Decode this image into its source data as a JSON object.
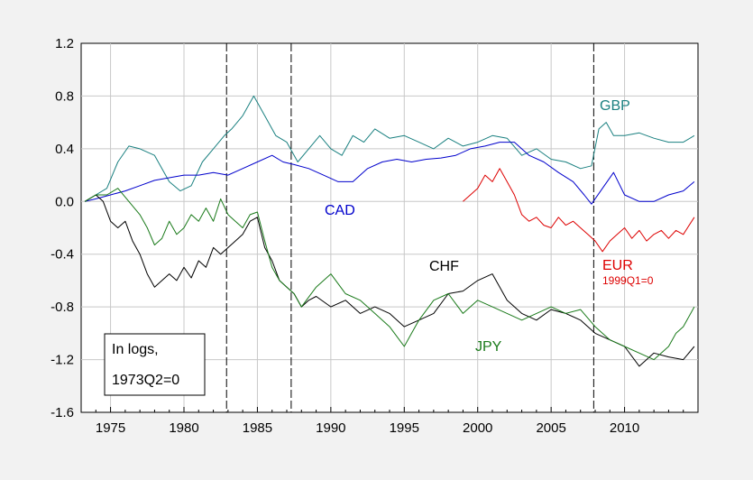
{
  "chart_data": {
    "type": "line",
    "title": "",
    "xlabel": "",
    "ylabel": "",
    "xlim": [
      1973,
      2015
    ],
    "ylim": [
      -1.6,
      1.2
    ],
    "x_ticks": [
      1975,
      1980,
      1985,
      1990,
      1995,
      2000,
      2005,
      2010
    ],
    "y_ticks": [
      1.2,
      0.8,
      0.4,
      0.0,
      -0.4,
      -0.8,
      -1.2,
      -1.6
    ],
    "y_tick_labels": [
      "1.2",
      "0.8",
      "0.4",
      "0.0",
      "-0.4",
      "-0.8",
      "-1.2",
      "-1.6"
    ],
    "x_tick_labels": [
      "1975",
      "1980",
      "1985",
      "1990",
      "1995",
      "2000",
      "2005",
      "2010"
    ],
    "grid": true,
    "vertical_lines": [
      1982.9,
      1987.3,
      2007.9
    ],
    "note": {
      "line1": "In logs,",
      "line2": "1973Q2=0"
    },
    "series": [
      {
        "name": "GBP",
        "color": "#1a8080",
        "x": [
          1973.25,
          1974,
          1974.75,
          1975.5,
          1976.25,
          1977,
          1978,
          1979,
          1979.75,
          1980.5,
          1981.25,
          1982,
          1982.75,
          1983.25,
          1984,
          1984.75,
          1985.5,
          1986.25,
          1987,
          1987.75,
          1988.5,
          1989.25,
          1990,
          1990.75,
          1991.5,
          1992.25,
          1993,
          1994,
          1995,
          1996,
          1997,
          1998,
          1999,
          2000,
          2001,
          2002,
          2003,
          2004,
          2005,
          2006,
          2007,
          2007.75,
          2008.25,
          2008.75,
          2009.25,
          2010,
          2011,
          2012,
          2013,
          2014,
          2014.75
        ],
        "values": [
          0.0,
          0.05,
          0.1,
          0.3,
          0.42,
          0.4,
          0.35,
          0.15,
          0.08,
          0.12,
          0.3,
          0.4,
          0.5,
          0.55,
          0.65,
          0.8,
          0.65,
          0.5,
          0.45,
          0.3,
          0.4,
          0.5,
          0.4,
          0.35,
          0.5,
          0.45,
          0.55,
          0.48,
          0.5,
          0.45,
          0.4,
          0.48,
          0.42,
          0.45,
          0.5,
          0.48,
          0.35,
          0.4,
          0.32,
          0.3,
          0.25,
          0.27,
          0.55,
          0.6,
          0.5,
          0.5,
          0.52,
          0.48,
          0.45,
          0.45,
          0.5
        ]
      },
      {
        "name": "CAD",
        "color": "#0000cc",
        "x": [
          1973.25,
          1974,
          1975,
          1976,
          1977,
          1978,
          1979,
          1980,
          1981,
          1982,
          1983,
          1984,
          1985,
          1986,
          1986.75,
          1987.5,
          1988.5,
          1989.5,
          1990.5,
          1991.5,
          1992.5,
          1993.5,
          1994.5,
          1995.5,
          1996.5,
          1997.5,
          1998.5,
          1999.5,
          2000.5,
          2001.5,
          2002.5,
          2003.5,
          2004.5,
          2005.5,
          2006.5,
          2007.25,
          2007.75,
          2008.5,
          2009.25,
          2010,
          2011,
          2012,
          2013,
          2014,
          2014.75
        ],
        "values": [
          0.0,
          0.02,
          0.05,
          0.08,
          0.12,
          0.16,
          0.18,
          0.2,
          0.2,
          0.22,
          0.2,
          0.25,
          0.3,
          0.35,
          0.3,
          0.28,
          0.25,
          0.2,
          0.15,
          0.15,
          0.25,
          0.3,
          0.32,
          0.3,
          0.32,
          0.33,
          0.35,
          0.4,
          0.42,
          0.45,
          0.45,
          0.35,
          0.3,
          0.22,
          0.15,
          0.05,
          -0.02,
          0.1,
          0.22,
          0.05,
          0.0,
          0.0,
          0.05,
          0.08,
          0.15
        ]
      },
      {
        "name": "EUR",
        "color": "#dd0000",
        "note": "1999Q1=0",
        "x": [
          1999.0,
          1999.5,
          2000,
          2000.5,
          2001,
          2001.5,
          2002,
          2002.5,
          2003,
          2003.5,
          2004,
          2004.5,
          2005,
          2005.5,
          2006,
          2006.5,
          2007,
          2007.5,
          2008,
          2008.5,
          2009,
          2009.5,
          2010,
          2010.5,
          2011,
          2011.5,
          2012,
          2012.5,
          2013,
          2013.5,
          2014,
          2014.75
        ],
        "values": [
          0.0,
          0.05,
          0.1,
          0.2,
          0.15,
          0.25,
          0.15,
          0.05,
          -0.1,
          -0.15,
          -0.12,
          -0.18,
          -0.2,
          -0.12,
          -0.18,
          -0.15,
          -0.2,
          -0.25,
          -0.3,
          -0.38,
          -0.3,
          -0.25,
          -0.2,
          -0.28,
          -0.22,
          -0.3,
          -0.25,
          -0.22,
          -0.28,
          -0.22,
          -0.25,
          -0.12
        ]
      },
      {
        "name": "CHF",
        "color": "#000000",
        "x": [
          1973.25,
          1974,
          1974.5,
          1975,
          1975.5,
          1976,
          1976.5,
          1977,
          1977.5,
          1978,
          1978.5,
          1979,
          1979.5,
          1980,
          1980.5,
          1981,
          1981.5,
          1982,
          1982.5,
          1983,
          1983.5,
          1984,
          1984.5,
          1985,
          1985.5,
          1986,
          1986.5,
          1987,
          1987.5,
          1988,
          1988.5,
          1989,
          1990,
          1991,
          1992,
          1993,
          1994,
          1995,
          1996,
          1997,
          1998,
          1999,
          2000,
          2001,
          2002,
          2003,
          2004,
          2005,
          2006,
          2007,
          2008,
          2009,
          2010,
          2011,
          2012,
          2013,
          2014,
          2014.75
        ],
        "values": [
          0.0,
          0.05,
          0.0,
          -0.15,
          -0.2,
          -0.15,
          -0.3,
          -0.4,
          -0.55,
          -0.65,
          -0.6,
          -0.55,
          -0.6,
          -0.5,
          -0.58,
          -0.45,
          -0.5,
          -0.35,
          -0.4,
          -0.35,
          -0.3,
          -0.25,
          -0.15,
          -0.12,
          -0.35,
          -0.45,
          -0.6,
          -0.65,
          -0.7,
          -0.8,
          -0.75,
          -0.72,
          -0.8,
          -0.75,
          -0.85,
          -0.8,
          -0.85,
          -0.95,
          -0.9,
          -0.85,
          -0.7,
          -0.68,
          -0.6,
          -0.55,
          -0.75,
          -0.85,
          -0.9,
          -0.82,
          -0.85,
          -0.9,
          -1.0,
          -1.05,
          -1.1,
          -1.25,
          -1.15,
          -1.18,
          -1.2,
          -1.1
        ]
      },
      {
        "name": "JPY",
        "color": "#1a7a1a",
        "x": [
          1973.25,
          1974,
          1974.75,
          1975.5,
          1976.25,
          1977,
          1977.5,
          1978,
          1978.5,
          1979,
          1979.5,
          1980,
          1980.5,
          1981,
          1981.5,
          1982,
          1982.5,
          1983,
          1983.5,
          1984,
          1984.5,
          1985,
          1985.5,
          1986,
          1986.5,
          1987,
          1987.5,
          1988,
          1989,
          1990,
          1991,
          1992,
          1993,
          1994,
          1995,
          1995.5,
          1996,
          1997,
          1998,
          1999,
          2000,
          2001,
          2002,
          2003,
          2004,
          2005,
          2006,
          2007,
          2008,
          2009,
          2010,
          2011,
          2012,
          2013,
          2013.5,
          2014,
          2014.75
        ],
        "values": [
          0.0,
          0.05,
          0.05,
          0.1,
          0.0,
          -0.1,
          -0.2,
          -0.33,
          -0.28,
          -0.15,
          -0.25,
          -0.2,
          -0.1,
          -0.15,
          -0.05,
          -0.15,
          0.02,
          -0.1,
          -0.15,
          -0.2,
          -0.1,
          -0.08,
          -0.3,
          -0.5,
          -0.6,
          -0.65,
          -0.7,
          -0.8,
          -0.65,
          -0.55,
          -0.7,
          -0.75,
          -0.85,
          -0.95,
          -1.1,
          -1.0,
          -0.9,
          -0.75,
          -0.7,
          -0.85,
          -0.75,
          -0.8,
          -0.85,
          -0.9,
          -0.85,
          -0.8,
          -0.85,
          -0.82,
          -0.95,
          -1.05,
          -1.1,
          -1.15,
          -1.2,
          -1.1,
          -1.0,
          -0.95,
          -0.8
        ]
      }
    ],
    "labels": {
      "gbp": "GBP",
      "cad": "CAD",
      "chf": "CHF",
      "eur": "EUR",
      "eur_note": "1999Q1=0",
      "jpy": "JPY"
    }
  }
}
